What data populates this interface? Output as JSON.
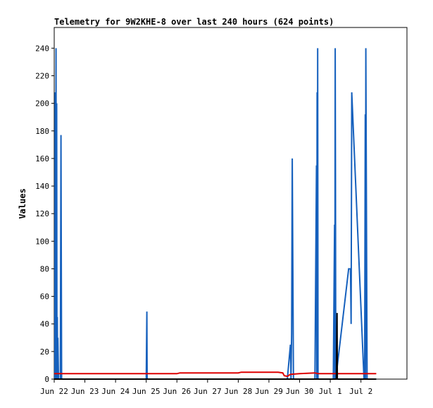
{
  "chart_data": {
    "type": "line",
    "title": "Telemetry for 9W2KHE-8 over last 240 hours (624 points)",
    "xlabel": "",
    "ylabel": "Values",
    "x_tick_labels": [
      "Jun 22",
      "Jun 23",
      "Jun 24",
      "Jun 25",
      "Jun 26",
      "Jun 27",
      "Jun 28",
      "Jun 29",
      "Jun 30",
      "Jul 1",
      "Jul 2"
    ],
    "y_ticks": [
      0,
      20,
      40,
      60,
      80,
      100,
      120,
      140,
      160,
      180,
      200,
      220,
      240
    ],
    "xlim": [
      0,
      11.5
    ],
    "ylim": [
      0,
      255
    ],
    "grid": false,
    "legend": "none",
    "series": [
      {
        "color": "#1560bd",
        "x": [
          0.02,
          0.03,
          0.05,
          0.06,
          0.07,
          0.08,
          0.09,
          0.1,
          0.11,
          0.12,
          0.14,
          0.2,
          0.22,
          0.24,
          0.25,
          0.27,
          0.3,
          0.4,
          3.0,
          3.02,
          3.03,
          3.05,
          7.6,
          7.7,
          7.72,
          7.74,
          7.76,
          7.8,
          8.1,
          8.5,
          8.55,
          8.56,
          8.57,
          8.58,
          8.59,
          8.6,
          8.65,
          8.7,
          9.1,
          9.14,
          9.15,
          9.16,
          9.17,
          9.18,
          9.6,
          9.62,
          9.64,
          9.66,
          9.68,
          9.7,
          10.1,
          10.12,
          10.14,
          10.15,
          10.16,
          10.2,
          10.5
        ],
        "y": [
          0,
          208,
          0,
          240,
          0,
          200,
          0,
          45,
          0,
          30,
          0,
          0,
          177,
          0,
          0,
          0,
          0,
          0,
          0,
          49,
          0,
          0,
          0,
          25,
          0,
          33,
          160,
          0,
          0,
          0,
          155,
          0,
          208,
          0,
          240,
          0,
          0,
          0,
          0,
          112,
          0,
          240,
          145,
          0,
          80,
          80,
          80,
          80,
          40,
          208,
          0,
          0,
          192,
          0,
          240,
          0,
          0
        ]
      },
      {
        "color": "#dd0000",
        "x": [
          0,
          4.0,
          4.1,
          6.0,
          6.1,
          7.0,
          7.3,
          7.45,
          7.5,
          7.6,
          7.7,
          8.0,
          8.5,
          8.6,
          9.0,
          9.5,
          10.0,
          10.5
        ],
        "y": [
          4,
          4,
          4.5,
          4.5,
          5,
          5,
          5,
          4.5,
          2.5,
          2,
          3.5,
          4,
          4.5,
          4,
          4,
          4,
          4,
          4
        ]
      },
      {
        "color": "#000000",
        "x": [
          0,
          9.2,
          9.22,
          9.23,
          9.25,
          10.5
        ],
        "y": [
          0,
          0,
          48,
          0,
          0,
          0
        ]
      }
    ]
  }
}
